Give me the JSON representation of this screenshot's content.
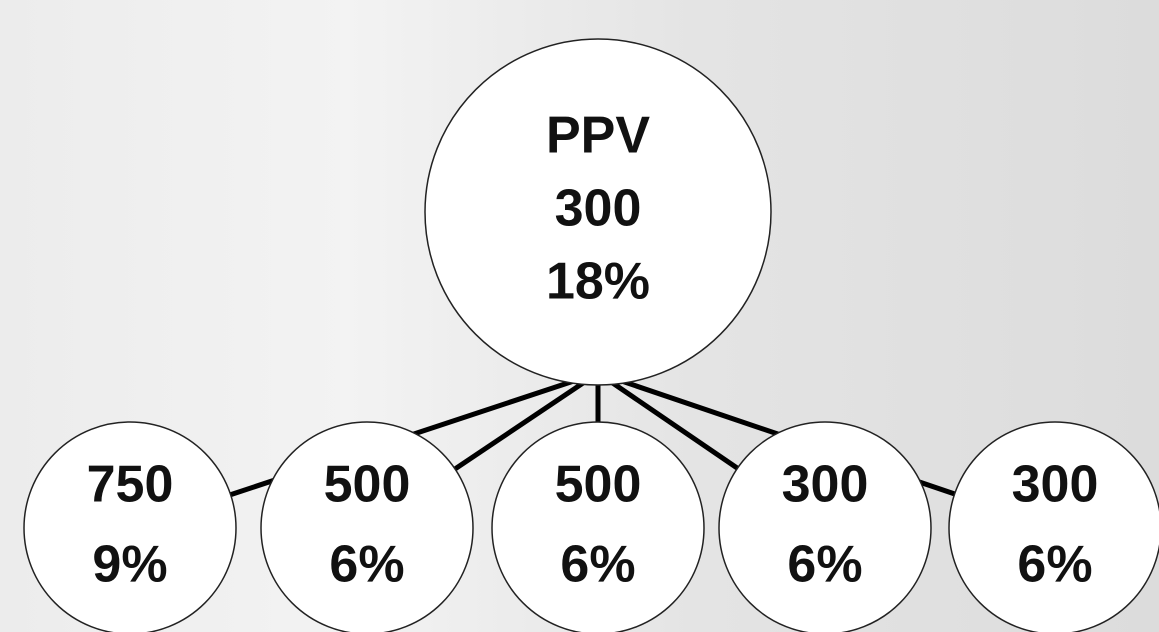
{
  "root": {
    "lines": [
      "PPV",
      "300",
      "18%"
    ]
  },
  "children": [
    {
      "lines": [
        "750",
        "9%"
      ]
    },
    {
      "lines": [
        "500",
        "6%"
      ]
    },
    {
      "lines": [
        "500",
        "6%"
      ]
    },
    {
      "lines": [
        "300",
        "6%"
      ]
    },
    {
      "lines": [
        "300",
        "6%"
      ]
    }
  ]
}
